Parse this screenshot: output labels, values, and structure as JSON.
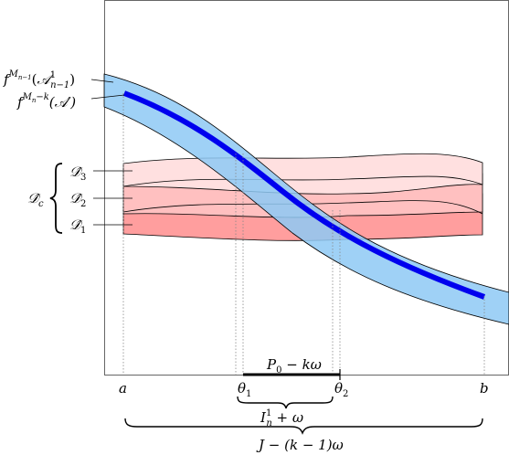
{
  "labels": {
    "f_top_base": "f",
    "f_top_sup": "M",
    "f_top_sup_sub": "n−1",
    "f_top_arg_open": "(",
    "f_top_arg_set": "𝒜",
    "f_top_arg_sup": "1",
    "f_top_arg_sub": "n−1",
    "f_top_arg_close": ")",
    "f_bottom_base": "f",
    "f_bottom_sup": "M",
    "f_bottom_sup_sub": "n",
    "f_bottom_sup_tail": "−k",
    "f_bottom_arg": "(𝒜′)",
    "dc_main": "𝒟̂",
    "dc_sub": "c",
    "d3": "𝒟̂",
    "d3_sub": "3",
    "d2": "𝒟̂",
    "d2_sub": "2",
    "d1": "𝒟̂",
    "d1_sub": "1",
    "a": "a",
    "b": "b",
    "theta1": "θ",
    "theta1_sub": "1",
    "theta2": "θ",
    "theta2_sub": "2",
    "p0": "P",
    "p0_sub": "0",
    "p0_tail": " − kω",
    "in_base": "I",
    "in_sup": "1",
    "in_sub": "n",
    "in_tail": " + ω",
    "j_label": "J − (k − 1)ω"
  },
  "colors": {
    "band_fill": "#8ec9f5",
    "curve": "#0000ee",
    "d3_fill": "#ffe0e0",
    "d2_fill": "#ffc0c0",
    "d1_fill": "#ff9e9e"
  }
}
